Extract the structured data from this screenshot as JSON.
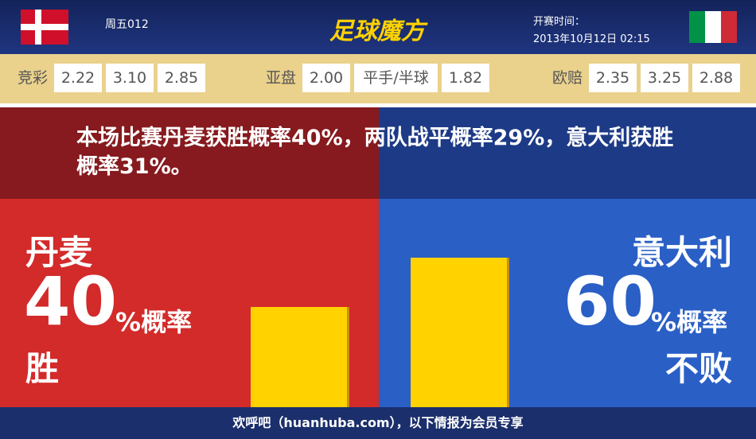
{
  "header": {
    "match_code": "周五012",
    "logo": "足球魔方",
    "kickoff_label": "开赛时间：",
    "kickoff_time": "2013年10月12日 02:15"
  },
  "odds": [
    {
      "label": "竞彩",
      "values": [
        "2.22",
        "3.10",
        "2.85"
      ]
    },
    {
      "label": "亚盘",
      "values": [
        "2.00",
        "平手/半球",
        "1.82"
      ]
    },
    {
      "label": "欧赔",
      "values": [
        "2.35",
        "3.25",
        "2.88"
      ]
    }
  ],
  "summary": "本场比赛丹麦获胜概率40%，两队战平概率29%，意大利获胜概率31%。",
  "left": {
    "team": "丹麦",
    "percent": 40,
    "unit": "%概率",
    "result": "胜"
  },
  "right": {
    "team": "意大利",
    "percent": 60,
    "unit": "%概率",
    "result": "不败"
  },
  "footer": "欢呼吧（huanhuba.com），以下情报为会员专享"
}
